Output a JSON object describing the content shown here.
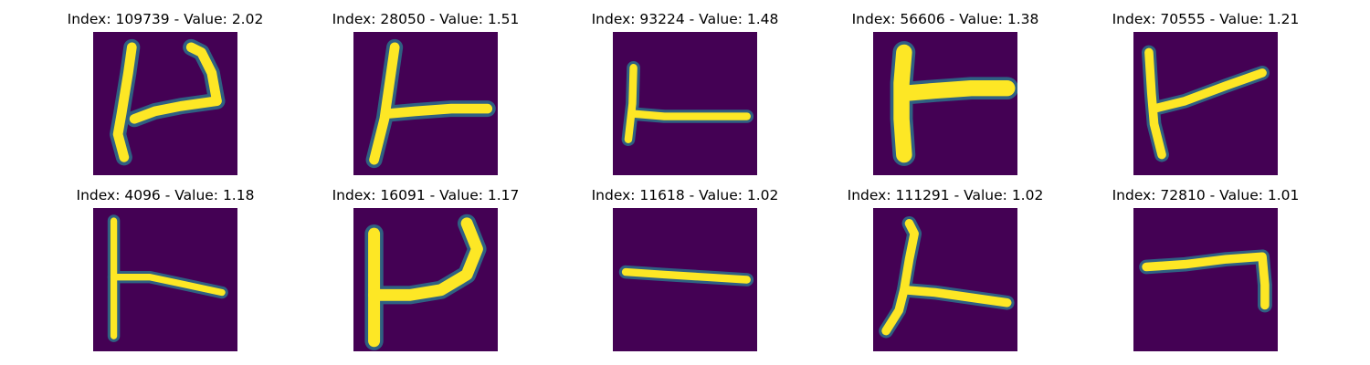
{
  "colors": {
    "background": "#440154",
    "stroke_core": "#fde725",
    "stroke_mid": "#b5de2b",
    "stroke_edge": "#21918c",
    "stroke_outer": "#2a788e"
  },
  "panels": [
    {
      "title": "Index: 109739 - Value: 2.02",
      "index": 109739,
      "value": 2.02
    },
    {
      "title": "Index: 28050 - Value: 1.51",
      "index": 28050,
      "value": 1.51
    },
    {
      "title": "Index: 93224 - Value: 1.48",
      "index": 93224,
      "value": 1.48
    },
    {
      "title": "Index: 56606 - Value: 1.38",
      "index": 56606,
      "value": 1.38
    },
    {
      "title": "Index: 70555 - Value: 1.21",
      "index": 70555,
      "value": 1.21
    },
    {
      "title": "Index: 4096 - Value: 1.18",
      "index": 4096,
      "value": 1.18
    },
    {
      "title": "Index: 16091 - Value: 1.17",
      "index": 16091,
      "value": 1.17
    },
    {
      "title": "Index: 11618 - Value: 1.02",
      "index": 11618,
      "value": 1.02
    },
    {
      "title": "Index: 111291 - Value: 1.02",
      "index": 111291,
      "value": 1.02
    },
    {
      "title": "Index: 72810 - Value: 1.01",
      "index": 72810,
      "value": 1.01
    }
  ]
}
